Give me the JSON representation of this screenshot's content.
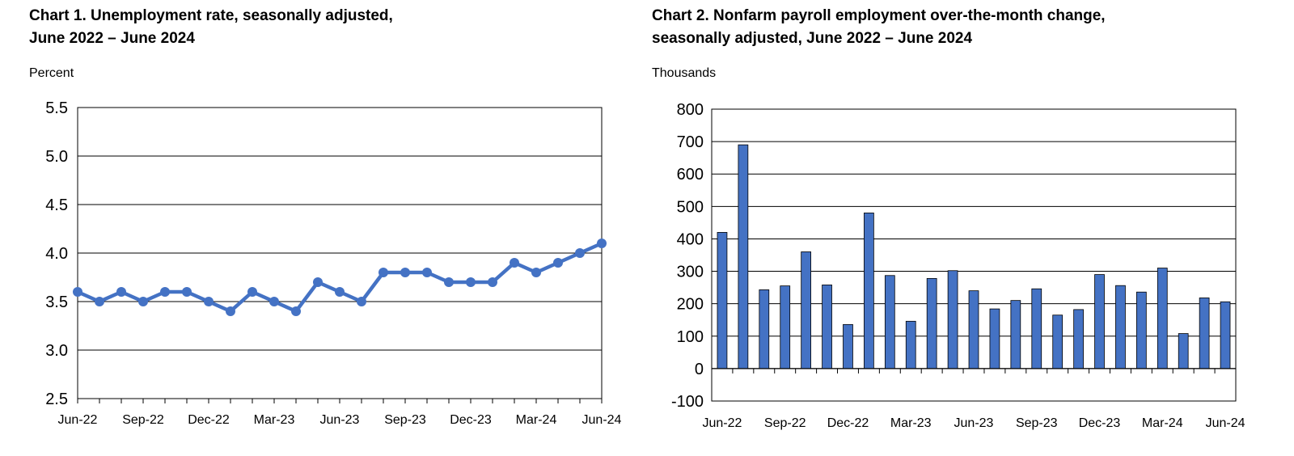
{
  "chart_data": [
    {
      "type": "line",
      "title_line1": "Chart 1. Unemployment rate, seasonally adjusted,",
      "title_line2": "June 2022 – June 2024",
      "ylabel": "Percent",
      "ylim": [
        2.5,
        5.5
      ],
      "yticks": [
        "5.5",
        "5.0",
        "4.5",
        "4.0",
        "3.5",
        "3.0",
        "2.5"
      ],
      "x_tick_labels": [
        "Jun-22",
        "Sep-22",
        "Dec-22",
        "Mar-23",
        "Jun-23",
        "Sep-23",
        "Dec-23",
        "Mar-24",
        "Jun-24"
      ],
      "x": [
        "Jun-22",
        "Jul-22",
        "Aug-22",
        "Sep-22",
        "Oct-22",
        "Nov-22",
        "Dec-22",
        "Jan-23",
        "Feb-23",
        "Mar-23",
        "Apr-23",
        "May-23",
        "Jun-23",
        "Jul-23",
        "Aug-23",
        "Sep-23",
        "Oct-23",
        "Nov-23",
        "Dec-23",
        "Jan-24",
        "Feb-24",
        "Mar-24",
        "Apr-24",
        "May-24",
        "Jun-24"
      ],
      "values": [
        3.6,
        3.5,
        3.6,
        3.5,
        3.6,
        3.6,
        3.5,
        3.4,
        3.6,
        3.5,
        3.4,
        3.7,
        3.6,
        3.5,
        3.8,
        3.8,
        3.8,
        3.7,
        3.7,
        3.7,
        3.9,
        3.8,
        3.9,
        4.0,
        4.1
      ],
      "grid": true,
      "line_color": "#4472c4"
    },
    {
      "type": "bar",
      "title_line1": "Chart 2. Nonfarm payroll employment over-the-month change,",
      "title_line2": "seasonally adjusted, June 2022 – June 2024",
      "ylabel": "Thousands",
      "ylim": [
        -100,
        800
      ],
      "yticks": [
        "800",
        "700",
        "600",
        "500",
        "400",
        "300",
        "200",
        "100",
        "0",
        "-100"
      ],
      "x_tick_labels": [
        "Jun-22",
        "Sep-22",
        "Dec-22",
        "Mar-23",
        "Jun-23",
        "Sep-23",
        "Dec-23",
        "Mar-24",
        "Jun-24"
      ],
      "x": [
        "Jun-22",
        "Jul-22",
        "Aug-22",
        "Sep-22",
        "Oct-22",
        "Nov-22",
        "Dec-22",
        "Jan-23",
        "Feb-23",
        "Mar-23",
        "Apr-23",
        "May-23",
        "Jun-23",
        "Jul-23",
        "Aug-23",
        "Sep-23",
        "Oct-23",
        "Nov-23",
        "Dec-23",
        "Jan-24",
        "Feb-24",
        "Mar-24",
        "Apr-24",
        "May-24",
        "Jun-24"
      ],
      "values": [
        420,
        690,
        243,
        255,
        360,
        258,
        136,
        480,
        287,
        146,
        278,
        302,
        240,
        184,
        210,
        246,
        165,
        182,
        290,
        256,
        236,
        310,
        108,
        218,
        206
      ],
      "grid": true,
      "bar_color": "#4472c4"
    }
  ]
}
